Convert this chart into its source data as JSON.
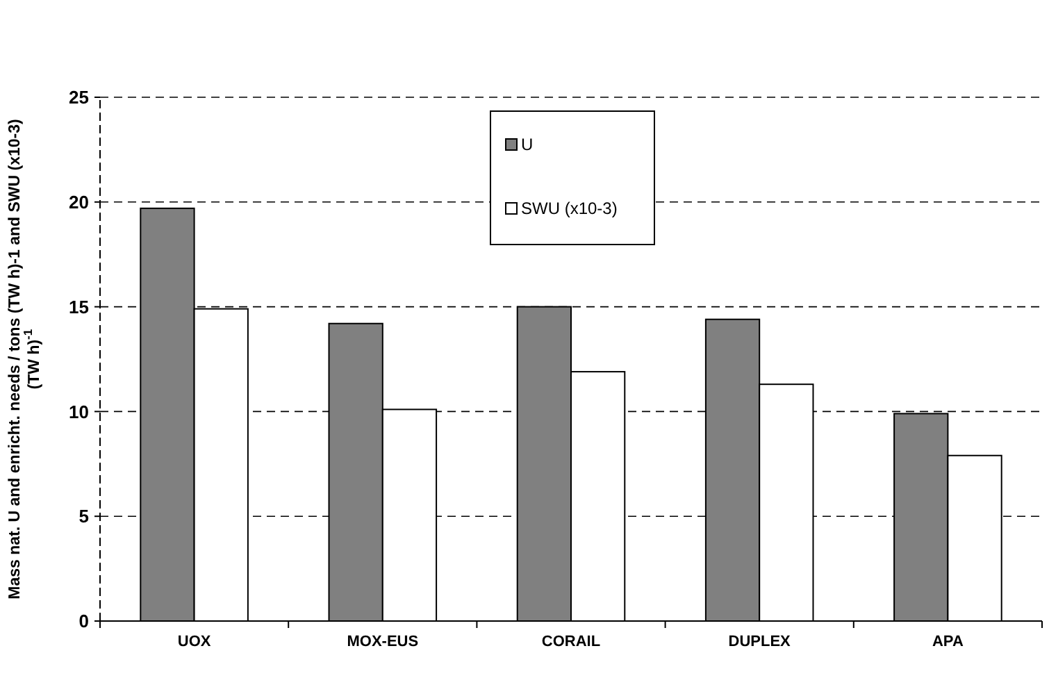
{
  "chart_data": {
    "type": "bar",
    "ylabel": "Mass nat. U and enricht. needs / tons (TW h)-1 and SWU (x10-3) (TW h)$^{-1}$",
    "categories": [
      "UOX",
      "MOX-EUS",
      "CORAIL",
      "DUPLEX",
      "APA"
    ],
    "series": [
      {
        "name": "U",
        "color": "#808080",
        "values": [
          19.7,
          14.2,
          15.0,
          14.4,
          9.9
        ]
      },
      {
        "name": "SWU (x10-3)",
        "color": "#ffffff",
        "values": [
          14.9,
          10.1,
          11.9,
          11.3,
          7.9
        ]
      }
    ],
    "ylim": [
      0,
      25
    ],
    "yticks": [
      0,
      5,
      10,
      15,
      20,
      25
    ],
    "grid": "y",
    "legend": "top"
  }
}
